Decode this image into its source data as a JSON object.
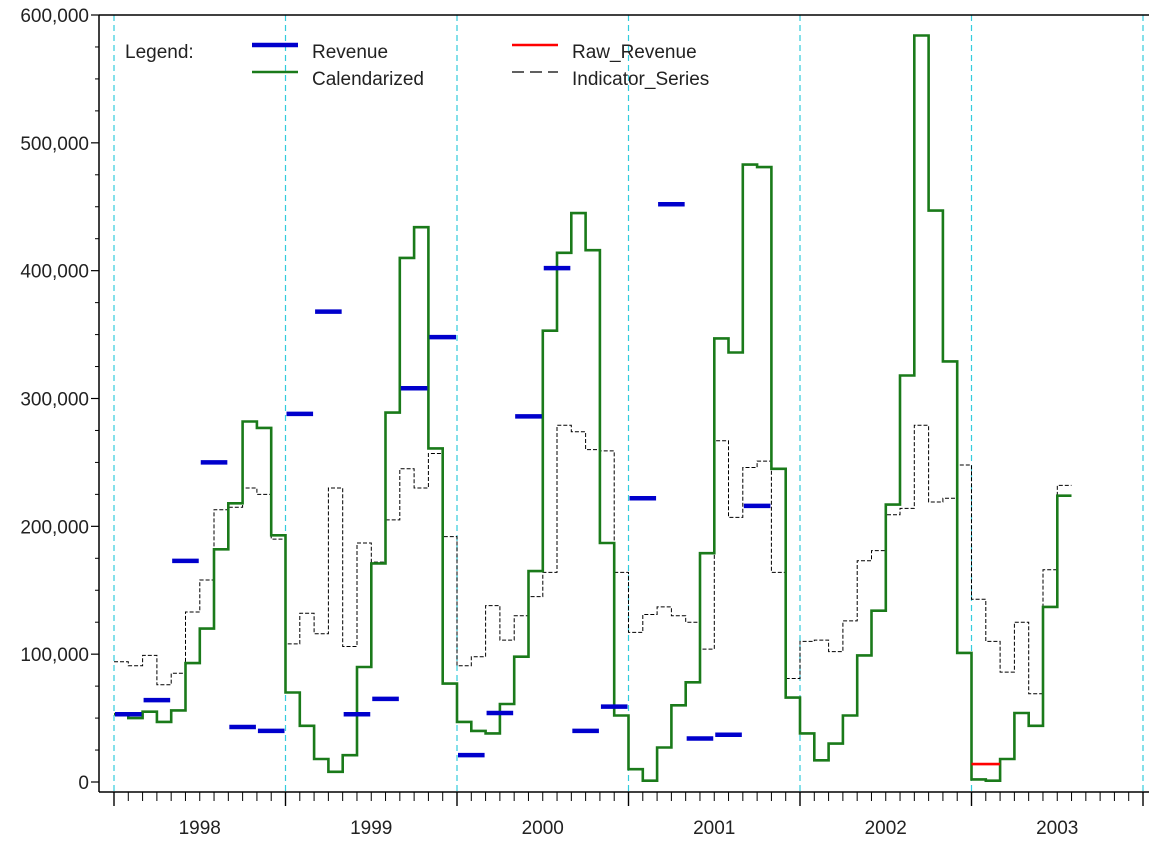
{
  "chart_data": {
    "type": "line",
    "title": "",
    "xlabel": "",
    "ylabel": "",
    "ylim": [
      0,
      600000
    ],
    "y_ticks": [
      0,
      100000,
      200000,
      300000,
      400000,
      500000,
      600000
    ],
    "y_tick_labels": [
      "0",
      "100,000",
      "200,000",
      "300,000",
      "400,000",
      "500,000",
      "600,000"
    ],
    "x_labels": [
      "1998",
      "1999",
      "2000",
      "2001",
      "2002",
      "2003"
    ],
    "x_domain": [
      "1998-01",
      "2003-12"
    ],
    "year_boundaries": [
      "1998-01",
      "1999-01",
      "2000-01",
      "2001-01",
      "2002-01",
      "2003-01",
      "2004-01"
    ],
    "grid": false,
    "legend": {
      "title": "Legend:",
      "placement": "top-left",
      "entries": [
        {
          "name": "Revenue",
          "color": "#0000cc",
          "style": "thick-solid"
        },
        {
          "name": "Calendarized",
          "color": "#1a7a1a",
          "style": "solid"
        },
        {
          "name": "Raw_Revenue",
          "color": "#ff0000",
          "style": "solid"
        },
        {
          "name": "Indicator_Series",
          "color": "#000000",
          "style": "dashed"
        }
      ]
    },
    "colors": {
      "revenue": "#0000cc",
      "calendarized": "#1a7a1a",
      "raw_revenue": "#ff0000",
      "indicator": "#000000",
      "year_lines": "#33ccdd",
      "axis": "#000000"
    },
    "series": [
      {
        "name": "Revenue",
        "kind": "bimonthly-segments",
        "start_month": "1998-01",
        "values": [
          53000,
          64000,
          173000,
          250000,
          43000,
          40000,
          288000,
          368000,
          53000,
          65000,
          308000,
          348000,
          21000,
          54000,
          286000,
          402000,
          40000,
          59000,
          222000,
          452000,
          34000,
          37000,
          216000
        ]
      },
      {
        "name": "Calendarized",
        "kind": "monthly-step",
        "start_month": "1998-01",
        "values": [
          53000,
          50000,
          55000,
          47000,
          56000,
          93000,
          120000,
          182000,
          218000,
          282000,
          277000,
          193000,
          70000,
          44000,
          18000,
          8000,
          21000,
          90000,
          171000,
          289000,
          410000,
          434000,
          261000,
          77000,
          47000,
          40000,
          38000,
          61000,
          98000,
          165000,
          353000,
          414000,
          445000,
          416000,
          187000,
          52000,
          10000,
          1000,
          27000,
          60000,
          78000,
          179000,
          347000,
          336000,
          483000,
          481000,
          245000,
          66000,
          38000,
          17000,
          30000,
          52000,
          99000,
          134000,
          217000,
          318000,
          584000,
          447000,
          329000,
          101000,
          2000,
          1000,
          18000,
          54000,
          44000,
          137000,
          224000
        ]
      },
      {
        "name": "Raw_Revenue",
        "kind": "segment",
        "start_month": "2003-01",
        "end_month": "2003-03",
        "value": 14000
      },
      {
        "name": "Indicator_Series",
        "kind": "monthly-step",
        "start_month": "1998-01",
        "values": [
          94000,
          91000,
          99000,
          76000,
          85000,
          133000,
          158000,
          213000,
          215000,
          230000,
          225000,
          190000,
          108000,
          132000,
          116000,
          230000,
          106000,
          187000,
          172000,
          205000,
          245000,
          230000,
          257000,
          192000,
          91000,
          98000,
          138000,
          111000,
          130000,
          145000,
          164000,
          279000,
          274000,
          260000,
          259000,
          164000,
          117000,
          131000,
          137000,
          130000,
          125000,
          104000,
          267000,
          207000,
          246000,
          251000,
          164000,
          81000,
          110000,
          111000,
          102000,
          126000,
          173000,
          181000,
          209000,
          214000,
          279000,
          219000,
          222000,
          248000,
          143000,
          110000,
          86000,
          125000,
          69000,
          166000,
          232000
        ]
      }
    ]
  }
}
